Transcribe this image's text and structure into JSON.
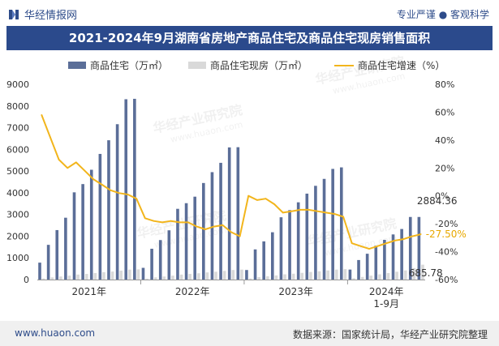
{
  "header": {
    "brand": "华经情报网",
    "tagline": "专业严谨 ● 客观科学"
  },
  "title": "2021-2024年9月湖南省房地产商品住宅及商品住宅现房销售面积",
  "watermarks": [
    "华经产业研究院",
    "www.huaon.com"
  ],
  "footer": {
    "url": "www.huaon.com",
    "source": "数据来源：国家统计局，华经产业研究院整理"
  },
  "colors": {
    "bar1": "#5b6e98",
    "bar2": "#d9d9d9",
    "line": "#f2b51c",
    "title_bg": "#2b4a8c"
  },
  "chart_data": {
    "type": "bar+line",
    "title": "2021-2024年9月湖南省房地产商品住宅及商品住宅现房销售面积",
    "x_group_labels": [
      "2021年",
      "2022年",
      "2023年",
      "2024年\n1-9月"
    ],
    "months_per_group": [
      12,
      12,
      12,
      9
    ],
    "series": [
      {
        "name": "商品住宅（万㎡）",
        "kind": "bar",
        "axis": "left",
        "values": [
          780,
          1600,
          2280,
          2850,
          4020,
          4400,
          5060,
          5790,
          6420,
          7160,
          8310,
          8330,
          540,
          1420,
          1820,
          2270,
          3260,
          3520,
          3820,
          4450,
          4950,
          5380,
          6090,
          6100,
          440,
          1390,
          1760,
          2180,
          2870,
          3200,
          3560,
          3960,
          4320,
          4640,
          5100,
          5170,
          460,
          900,
          1190,
          1560,
          1830,
          2080,
          2330,
          2884.36,
          2884.36
        ]
      },
      {
        "name": "商品住宅现房（万㎡）",
        "kind": "bar",
        "axis": "left",
        "values": [
          50,
          100,
          140,
          180,
          230,
          260,
          300,
          340,
          370,
          410,
          460,
          470,
          40,
          100,
          140,
          180,
          230,
          260,
          290,
          330,
          360,
          400,
          440,
          460,
          50,
          110,
          150,
          190,
          240,
          270,
          310,
          350,
          380,
          420,
          460,
          480,
          60,
          120,
          180,
          240,
          300,
          360,
          420,
          530,
          685.78
        ]
      },
      {
        "name": "商品住宅增速（%）",
        "kind": "line",
        "axis": "right",
        "values": [
          58,
          42,
          26,
          20,
          24,
          18,
          12,
          8,
          4,
          2,
          1,
          -2,
          -16,
          -18,
          -19,
          -18,
          -19,
          -19,
          -22,
          -24,
          -22,
          -21,
          -26,
          -29,
          0,
          -3,
          -2,
          -6,
          -12,
          -11,
          -10,
          -10,
          -11,
          -12,
          -13,
          -15,
          -34,
          -36,
          -38,
          -36,
          -34,
          -32,
          -31,
          -29,
          -27.5
        ]
      }
    ],
    "y_left": {
      "min": 0,
      "max": 9000,
      "ticks": [
        0,
        1000,
        2000,
        3000,
        4000,
        5000,
        6000,
        7000,
        8000,
        9000
      ]
    },
    "y_right": {
      "min": -60,
      "max": 80,
      "ticks": [
        "-60%",
        "-40%",
        "-20%",
        "0%",
        "20%",
        "40%",
        "60%",
        "80%"
      ]
    },
    "annotations": [
      {
        "series": "商品住宅（万㎡）",
        "index": 44,
        "text": "2884.36"
      },
      {
        "series": "商品住宅现房（万㎡）",
        "index": 44,
        "text": "685.78"
      },
      {
        "series": "商品住宅增速（%）",
        "index": 44,
        "text": "-27.50%"
      }
    ],
    "legend_position": "top"
  }
}
